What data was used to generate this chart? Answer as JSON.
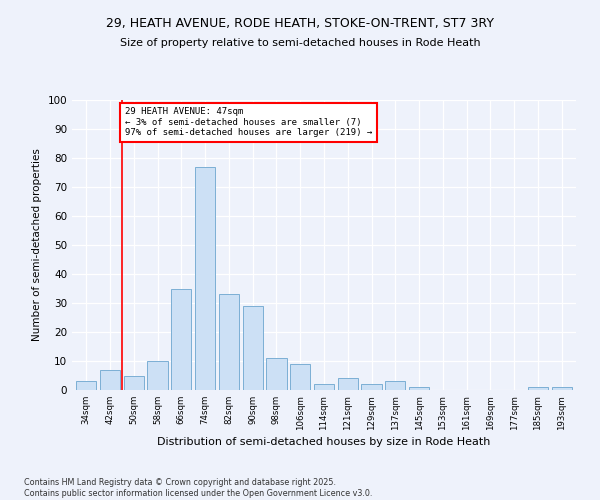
{
  "title_line1": "29, HEATH AVENUE, RODE HEATH, STOKE-ON-TRENT, ST7 3RY",
  "title_line2": "Size of property relative to semi-detached houses in Rode Heath",
  "xlabel": "Distribution of semi-detached houses by size in Rode Heath",
  "ylabel": "Number of semi-detached properties",
  "categories": [
    "34sqm",
    "42sqm",
    "50sqm",
    "58sqm",
    "66sqm",
    "74sqm",
    "82sqm",
    "90sqm",
    "98sqm",
    "106sqm",
    "114sqm",
    "121sqm",
    "129sqm",
    "137sqm",
    "145sqm",
    "153sqm",
    "161sqm",
    "169sqm",
    "177sqm",
    "185sqm",
    "193sqm"
  ],
  "values": [
    3,
    7,
    5,
    10,
    35,
    77,
    33,
    29,
    11,
    9,
    2,
    4,
    2,
    3,
    1,
    0,
    0,
    0,
    0,
    1,
    1
  ],
  "bar_color": "#cce0f5",
  "bar_edge_color": "#7bafd4",
  "red_line_x": 1.5,
  "annotation_text": "29 HEATH AVENUE: 47sqm\n← 3% of semi-detached houses are smaller (7)\n97% of semi-detached houses are larger (219) →",
  "annotation_box_color": "white",
  "annotation_box_edge": "red",
  "ylim": [
    0,
    100
  ],
  "yticks": [
    0,
    10,
    20,
    30,
    40,
    50,
    60,
    70,
    80,
    90,
    100
  ],
  "footer": "Contains HM Land Registry data © Crown copyright and database right 2025.\nContains public sector information licensed under the Open Government Licence v3.0.",
  "bg_color": "#eef2fb",
  "grid_color": "white"
}
